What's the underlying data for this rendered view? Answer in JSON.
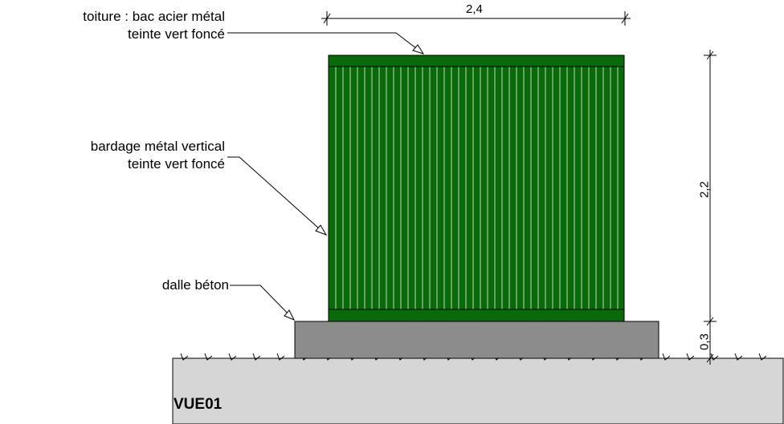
{
  "annotations": {
    "roof_line1": "toiture : bac acier métal",
    "roof_line2": "teinte vert foncé",
    "cladding_line1": "bardage métal vertical",
    "cladding_line2": "teinte vert foncé",
    "slab": "dalle béton"
  },
  "dimensions": {
    "width": "2,4",
    "height": "2,2",
    "slab_height": "0,3"
  },
  "view_title": "VUE01",
  "colors": {
    "cladding": "#0a6a0a",
    "cladding_rib": "#b9d9b9",
    "slab": "#8c8c8c",
    "ground": "#d6d6d6",
    "line": "#000000"
  }
}
